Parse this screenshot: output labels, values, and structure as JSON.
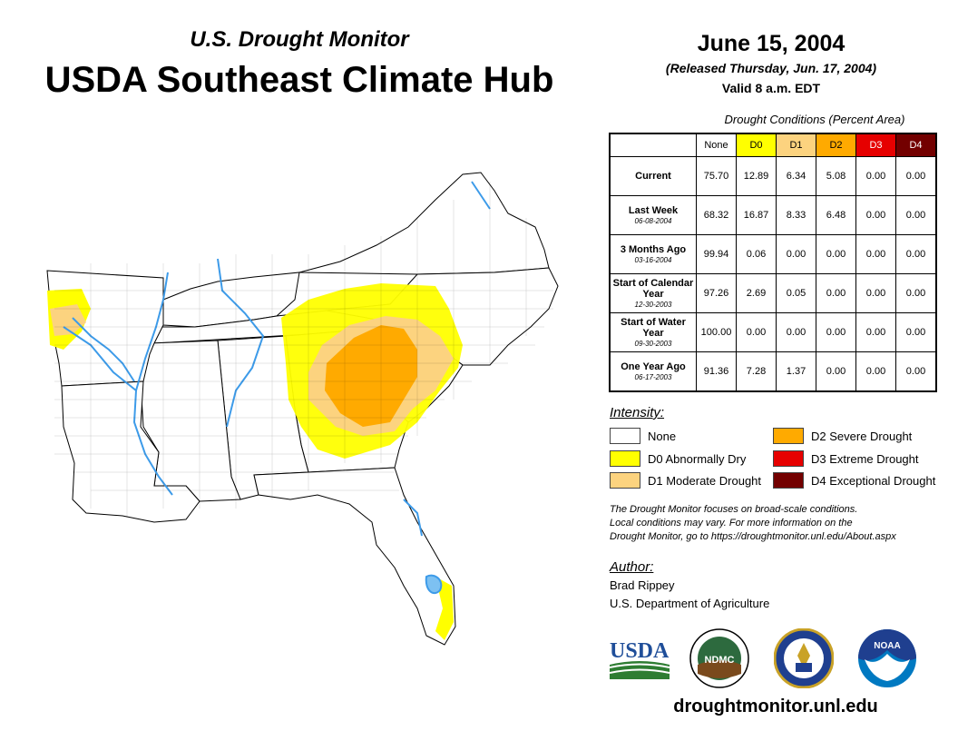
{
  "header": {
    "subtitle": "U.S. Drought Monitor",
    "title": "USDA Southeast Climate Hub",
    "date": "June 15, 2004",
    "released": "(Released Thursday, Jun. 17, 2004)",
    "valid": "Valid 8 a.m. EDT"
  },
  "table": {
    "caption": "Drought Conditions (Percent Area)",
    "columns": [
      {
        "label": "None",
        "color": "#ffffff"
      },
      {
        "label": "D0",
        "color": "#ffff00"
      },
      {
        "label": "D1",
        "color": "#fcd37f"
      },
      {
        "label": "D2",
        "color": "#ffaa00"
      },
      {
        "label": "D3",
        "color": "#e60000"
      },
      {
        "label": "D4",
        "color": "#730000"
      }
    ],
    "rows": [
      {
        "label": "Current",
        "date": "",
        "values": [
          "75.70",
          "12.89",
          "6.34",
          "5.08",
          "0.00",
          "0.00"
        ]
      },
      {
        "label": "Last Week",
        "date": "06-08-2004",
        "values": [
          "68.32",
          "16.87",
          "8.33",
          "6.48",
          "0.00",
          "0.00"
        ]
      },
      {
        "label": "3 Months Ago",
        "date": "03-16-2004",
        "values": [
          "99.94",
          "0.06",
          "0.00",
          "0.00",
          "0.00",
          "0.00"
        ]
      },
      {
        "label": "Start of Calendar Year",
        "date": "12-30-2003",
        "values": [
          "97.26",
          "2.69",
          "0.05",
          "0.00",
          "0.00",
          "0.00"
        ]
      },
      {
        "label": "Start of Water Year",
        "date": "09-30-2003",
        "values": [
          "100.00",
          "0.00",
          "0.00",
          "0.00",
          "0.00",
          "0.00"
        ]
      },
      {
        "label": "One Year Ago",
        "date": "06-17-2003",
        "values": [
          "91.36",
          "7.28",
          "1.37",
          "0.00",
          "0.00",
          "0.00"
        ]
      }
    ]
  },
  "legend": {
    "title": "Intensity:",
    "items": [
      {
        "label": "None",
        "color": "#ffffff"
      },
      {
        "label": "D0 Abnormally Dry",
        "color": "#ffff00"
      },
      {
        "label": "D1 Moderate Drought",
        "color": "#fcd37f"
      },
      {
        "label": "D2 Severe Drought",
        "color": "#ffaa00"
      },
      {
        "label": "D3 Extreme Drought",
        "color": "#e60000"
      },
      {
        "label": "D4 Exceptional Drought",
        "color": "#730000"
      }
    ]
  },
  "note": {
    "line1": "The Drought Monitor focuses on broad-scale conditions.",
    "line2": "Local conditions may vary. For more information on the",
    "line3": "Drought Monitor, go to https://droughtmonitor.unl.edu/About.aspx"
  },
  "author": {
    "label": "Author:",
    "name": "Brad Rippey",
    "org": "U.S. Department of Agriculture"
  },
  "logos": {
    "usda": "USDA",
    "ndmc": "NDMC",
    "noaa": "NOAA"
  },
  "footer": {
    "url": "droughtmonitor.unl.edu"
  },
  "map": {
    "water_color": "#3d9be9",
    "border_color": "#000000"
  }
}
